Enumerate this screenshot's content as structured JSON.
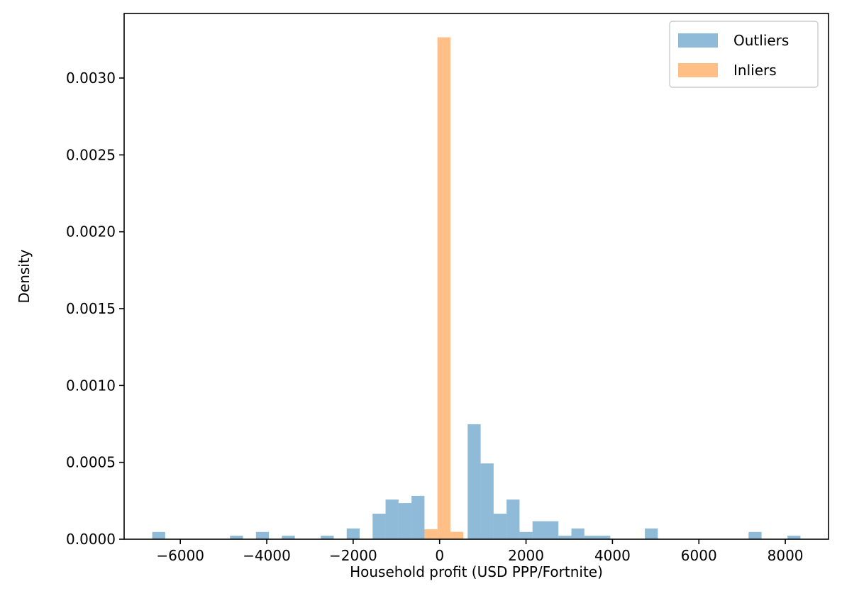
{
  "chart_data": {
    "type": "bar",
    "xlabel": "Household profit (USD PPP/Fortnite)",
    "ylabel": "Density",
    "xlim": [
      -7300,
      9000
    ],
    "ylim": [
      0,
      0.00342
    ],
    "x_ticks": [
      -6000,
      -4000,
      -2000,
      0,
      2000,
      4000,
      6000,
      8000
    ],
    "x_tick_labels": [
      "−6000",
      "−4000",
      "−2000",
      "0",
      "2000",
      "4000",
      "6000",
      "8000"
    ],
    "y_ticks": [
      0,
      0.0005,
      0.001,
      0.0015,
      0.002,
      0.0025,
      0.003
    ],
    "y_tick_labels": [
      "0.0000",
      "0.0005",
      "0.0010",
      "0.0015",
      "0.0020",
      "0.0025",
      "0.0030"
    ],
    "grid": false,
    "legend_position": "top-right",
    "series": [
      {
        "name": "Outliers",
        "color": "#1f77b4",
        "opacity": 0.5,
        "bin_width": 300,
        "bins": [
          [
            -6650,
            4.7e-05
          ],
          [
            -4850,
            2.3e-05
          ],
          [
            -4250,
            4.7e-05
          ],
          [
            -3650,
            2.3e-05
          ],
          [
            -2750,
            2.3e-05
          ],
          [
            -2150,
            7e-05
          ],
          [
            -1550,
            0.000166
          ],
          [
            -1250,
            0.000258
          ],
          [
            -950,
            0.000235
          ],
          [
            -650,
            0.000282
          ],
          [
            650,
            0.000748
          ],
          [
            950,
            0.000493
          ],
          [
            1250,
            0.000166
          ],
          [
            1550,
            0.000258
          ],
          [
            1850,
            4.7e-05
          ],
          [
            2150,
            0.000117
          ],
          [
            2450,
            0.000117
          ],
          [
            2750,
            2.3e-05
          ],
          [
            3050,
            7e-05
          ],
          [
            3350,
            2.3e-05
          ],
          [
            3650,
            2.3e-05
          ],
          [
            4750,
            7e-05
          ],
          [
            7150,
            4.7e-05
          ],
          [
            8050,
            2.3e-05
          ]
        ]
      },
      {
        "name": "Inliers",
        "color": "#ff7f0e",
        "opacity": 0.5,
        "bin_width": 300,
        "bins": [
          [
            -350,
            6.5e-05
          ],
          [
            -50,
            0.003265
          ],
          [
            250,
            4.8e-05
          ]
        ]
      }
    ]
  }
}
